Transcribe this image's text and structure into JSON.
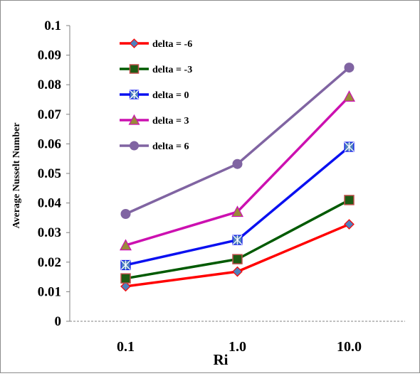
{
  "chart_data": {
    "type": "line",
    "title": "",
    "xlabel": "Ri",
    "ylabel": "Average Nusselt  Number",
    "categories": [
      "0.1",
      "1.0",
      "10.0"
    ],
    "ylim": [
      0,
      0.1
    ],
    "yticks": [
      "0",
      "0.01",
      "0.02",
      "0.03",
      "0.04",
      "0.05",
      "0.06",
      "0.07",
      "0.08",
      "0.09",
      "0.1"
    ],
    "grid": false,
    "legend_position": "top-left",
    "series": [
      {
        "name": "delta = -6",
        "values": [
          0.0118,
          0.0168,
          0.0328
        ],
        "color": "#ff0000",
        "marker": "diamond",
        "marker_fill": "#4f81bd"
      },
      {
        "name": "delta = -3",
        "values": [
          0.0145,
          0.021,
          0.041
        ],
        "color": "#005a00",
        "marker": "square",
        "marker_fill": "#1e5c14",
        "marker_stroke": "#c0504d"
      },
      {
        "name": "delta = 0",
        "values": [
          0.019,
          0.0275,
          0.059
        ],
        "color": "#0a10f0",
        "marker": "asterisk-square",
        "marker_fill": "#4f81bd"
      },
      {
        "name": "delta = 3",
        "values": [
          0.0257,
          0.037,
          0.076
        ],
        "color": "#cc10b0",
        "marker": "triangle",
        "marker_fill": "#9b8a3a"
      },
      {
        "name": "delta = 6",
        "values": [
          0.0363,
          0.0532,
          0.0858
        ],
        "color": "#8064a2",
        "marker": "circle",
        "marker_fill": "#8064a2"
      }
    ]
  }
}
